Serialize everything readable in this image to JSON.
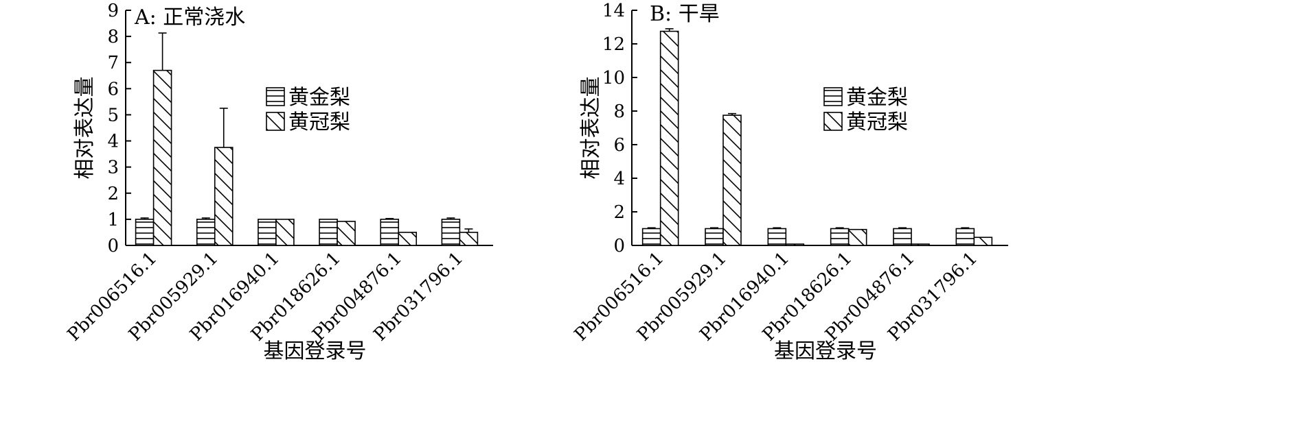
{
  "chart_data": [
    {
      "type": "bar",
      "title": "A: 正常浇水",
      "xlabel": "基因登录号",
      "ylabel": "相对表达量",
      "ylim": [
        0,
        9
      ],
      "yticks": [
        "0",
        "1",
        "2",
        "3",
        "4",
        "5",
        "6",
        "7",
        "8",
        "9"
      ],
      "grid": false,
      "legend_position": "center-right",
      "categories": [
        "Pbr006516.1",
        "Pbr005929.1",
        "Pbr016940.1",
        "Pbr018626.1",
        "Pbr004876.1",
        "Pbr031796.1"
      ],
      "series": [
        {
          "name": "黄金梨",
          "pattern": "horizontal-lines",
          "values": [
            1.0,
            1.0,
            1.0,
            1.0,
            1.0,
            1.0
          ],
          "errors": [
            0.05,
            0.05,
            0.0,
            0.0,
            0.03,
            0.05
          ]
        },
        {
          "name": "黄冠梨",
          "pattern": "diagonal-lines",
          "values": [
            6.7,
            3.75,
            1.0,
            0.92,
            0.5,
            0.5
          ],
          "errors": [
            1.43,
            1.5,
            0.0,
            0.0,
            0.0,
            0.13
          ]
        }
      ]
    },
    {
      "type": "bar",
      "title": "B: 干旱",
      "xlabel": "基因登录号",
      "ylabel": "相对表达量",
      "ylim": [
        0,
        14
      ],
      "yticks": [
        "0",
        "2",
        "4",
        "6",
        "8",
        "10",
        "12",
        "14"
      ],
      "grid": false,
      "legend_position": "center-right",
      "categories": [
        "Pbr006516.1",
        "Pbr005929.1",
        "Pbr016940.1",
        "Pbr018626.1",
        "Pbr004876.1",
        "Pbr031796.1"
      ],
      "series": [
        {
          "name": "黄金梨",
          "pattern": "horizontal-lines",
          "values": [
            1.0,
            1.0,
            1.0,
            1.0,
            1.0,
            1.0
          ],
          "errors": [
            0.05,
            0.05,
            0.05,
            0.05,
            0.05,
            0.05
          ]
        },
        {
          "name": "黄冠梨",
          "pattern": "diagonal-lines",
          "values": [
            12.75,
            7.75,
            0.08,
            0.95,
            0.08,
            0.48
          ],
          "errors": [
            0.15,
            0.1,
            0.0,
            0.0,
            0.0,
            0.0
          ]
        }
      ]
    }
  ]
}
